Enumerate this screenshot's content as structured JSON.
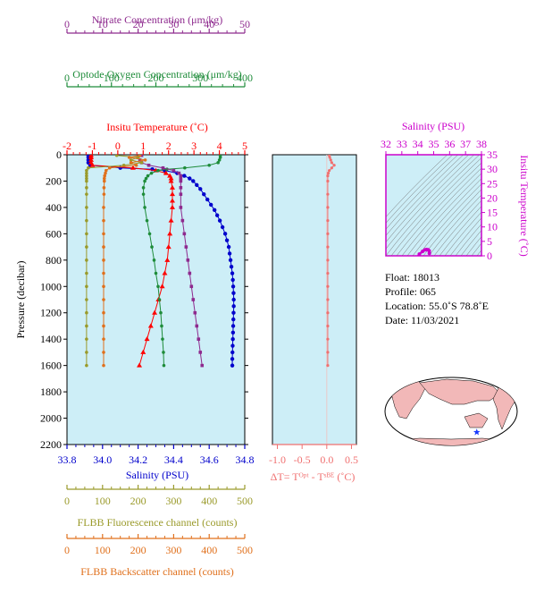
{
  "colors": {
    "nitrate": "#8e2a8e",
    "oxygen": "#1e8c3a",
    "temperature": "#ff0000",
    "salinity": "#0000cc",
    "fluorescence": "#9a9a2a",
    "backscatter": "#e0701c",
    "delta_t": "#f07070",
    "ts_axis": "#cc00cc",
    "panel_bg": "#cdeef7",
    "land": "#f2b8b8"
  },
  "chart_data": [
    {
      "type": "line",
      "name": "profiles",
      "ylabel": "Pressure (decibar)",
      "ylim": [
        2200,
        0
      ],
      "yticks": [
        0,
        200,
        400,
        600,
        800,
        1000,
        1200,
        1400,
        1600,
        1800,
        2000,
        2200
      ],
      "axes": {
        "nitrate": {
          "label": "Nitrate Concentration (μm/kg)",
          "range": [
            0,
            50
          ],
          "ticks": [
            0,
            10,
            20,
            30,
            40,
            50
          ]
        },
        "oxygen": {
          "label": "Optode Oxygen Concentration (μm/kg)",
          "range": [
            0,
            400
          ],
          "ticks": [
            0,
            100,
            200,
            300,
            400
          ]
        },
        "temperature": {
          "label": "Insitu Temperature (˚C)",
          "range": [
            -2,
            5
          ],
          "ticks": [
            -2,
            -1,
            0,
            1,
            2,
            3,
            4,
            5
          ]
        },
        "salinity": {
          "label": "Salinity (PSU)",
          "range": [
            33.8,
            34.8
          ],
          "ticks": [
            "33.8",
            "34.0",
            "34.2",
            "34.4",
            "34.6",
            "34.8"
          ]
        },
        "fluorescence": {
          "label": "FLBB Fluorescence channel (counts)",
          "range": [
            0,
            500
          ],
          "ticks": [
            0,
            100,
            200,
            300,
            400,
            500
          ]
        },
        "backscatter": {
          "label": "FLBB Backscatter channel (counts)",
          "range": [
            0,
            500
          ],
          "ticks": [
            0,
            100,
            200,
            300,
            400,
            500
          ]
        }
      },
      "series": [
        {
          "key": "salinity",
          "pressure": [
            5,
            20,
            40,
            60,
            80,
            100,
            110,
            120,
            140,
            160,
            180,
            200,
            230,
            260,
            300,
            340,
            380,
            420,
            460,
            500,
            550,
            600,
            650,
            700,
            750,
            800,
            850,
            900,
            950,
            1000,
            1050,
            1100,
            1150,
            1200,
            1250,
            1300,
            1350,
            1400,
            1450,
            1500,
            1550,
            1600
          ],
          "values": [
            33.92,
            33.92,
            33.92,
            33.92,
            33.93,
            34.1,
            34.28,
            34.35,
            34.42,
            34.46,
            34.49,
            34.51,
            34.53,
            34.55,
            34.57,
            34.59,
            34.61,
            34.63,
            34.645,
            34.66,
            34.675,
            34.69,
            34.7,
            34.71,
            34.715,
            34.72,
            34.725,
            34.73,
            34.733,
            34.735,
            34.737,
            34.738,
            34.738,
            34.737,
            34.736,
            34.735,
            34.734,
            34.733,
            34.732,
            34.731,
            34.73,
            34.73
          ]
        },
        {
          "key": "temperature",
          "pressure": [
            5,
            20,
            40,
            60,
            80,
            100,
            120,
            140,
            160,
            180,
            200,
            250,
            300,
            350,
            400,
            500,
            600,
            700,
            800,
            900,
            1000,
            1100,
            1200,
            1300,
            1400,
            1500,
            1600
          ],
          "values": [
            -1.05,
            -1.05,
            -1.05,
            -1.05,
            -1.0,
            0.6,
            1.5,
            1.9,
            2.05,
            2.1,
            2.1,
            2.15,
            2.15,
            2.15,
            2.15,
            2.1,
            2.05,
            2.0,
            1.95,
            1.85,
            1.75,
            1.6,
            1.45,
            1.3,
            1.15,
            1.0,
            0.85
          ]
        },
        {
          "key": "oxygen",
          "pressure": [
            5,
            20,
            40,
            60,
            80,
            100,
            110,
            120,
            140,
            160,
            180,
            200,
            250,
            300,
            400,
            500,
            600,
            700,
            800,
            900,
            1000,
            1100,
            1200,
            1300,
            1400,
            1500,
            1600
          ],
          "values": [
            345,
            345,
            343,
            340,
            320,
            265,
            225,
            205,
            190,
            182,
            178,
            175,
            172,
            172,
            175,
            180,
            186,
            191,
            196,
            200,
            205,
            208,
            211,
            213,
            215,
            217,
            218
          ]
        },
        {
          "key": "nitrate",
          "pressure": [
            5,
            20,
            40,
            60,
            80,
            100,
            120,
            140,
            160,
            180,
            200,
            250,
            300,
            400,
            500,
            600,
            700,
            800,
            900,
            1000,
            1100,
            1200,
            1300,
            1400,
            1500,
            1600
          ],
          "values": [
            21,
            20,
            20.5,
            21,
            23,
            27,
            30,
            31.5,
            32,
            32,
            32,
            32,
            32,
            32,
            32.5,
            33,
            33.5,
            34,
            34.5,
            35,
            35.5,
            36,
            36.5,
            37,
            37.5,
            38
          ]
        },
        {
          "key": "fluorescence",
          "pressure": [
            5,
            20,
            40,
            60,
            80,
            100,
            120,
            140,
            160,
            180,
            200,
            250,
            300,
            400,
            500,
            600,
            700,
            800,
            900,
            1000,
            1100,
            1200,
            1300,
            1400,
            1500,
            1600
          ],
          "values": [
            140,
            200,
            180,
            210,
            160,
            60,
            55,
            55,
            55,
            55,
            55,
            55,
            55,
            55,
            55,
            55,
            55,
            55,
            55,
            55,
            55,
            55,
            55,
            55,
            55,
            55
          ]
        },
        {
          "key": "backscatter",
          "pressure": [
            5,
            20,
            40,
            60,
            80,
            100,
            120,
            140,
            160,
            180,
            200,
            250,
            300,
            400,
            500,
            600,
            700,
            800,
            900,
            1000,
            1100,
            1200,
            1300,
            1400,
            1500,
            1600
          ],
          "values": [
            205,
            175,
            220,
            180,
            195,
            120,
            110,
            108,
            106,
            105,
            105,
            104,
            104,
            103,
            103,
            103,
            103,
            103,
            103,
            103,
            103,
            103,
            103,
            103,
            103,
            103
          ]
        }
      ]
    },
    {
      "type": "line",
      "name": "delta_t",
      "xlabel": "ΔT= Tᴼᵖᵗ - Tˢᴮᴱ (˚C)",
      "xlim": [
        -1.1,
        0.6
      ],
      "xticks": [
        "-1.0",
        "-0.5",
        "0.0",
        "0.5"
      ],
      "ylim": [
        2200,
        0
      ],
      "series": [
        {
          "name": "",
          "pressure": [
            5,
            20,
            40,
            60,
            80,
            100,
            120,
            140,
            160,
            200,
            300,
            400,
            500,
            600,
            700,
            800,
            900,
            1000,
            1100,
            1200,
            1300,
            1400,
            1500,
            1600
          ],
          "values": [
            0.05,
            0.06,
            0.08,
            0.1,
            0.15,
            0.1,
            0.05,
            0.03,
            0.02,
            0.02,
            0.02,
            0.02,
            0.02,
            0.02,
            0.02,
            0.02,
            0.02,
            0.02,
            0.02,
            0.02,
            0.02,
            0.02,
            0.02,
            0.02
          ]
        }
      ]
    },
    {
      "type": "scatter",
      "name": "ts_diagram",
      "xlabel": "Salinity (PSU)",
      "ylabel": "Insitu Temperature (˚C)",
      "xlim": [
        32,
        38
      ],
      "ylim": [
        0,
        35
      ],
      "xticks": [
        32,
        33,
        34,
        35,
        36,
        37,
        38
      ],
      "yticks": [
        0,
        5,
        10,
        15,
        20,
        25,
        30,
        35
      ],
      "series": [
        {
          "name": "",
          "salinity": [
            33.92,
            34.1,
            34.3,
            34.45,
            34.55,
            34.65,
            34.72,
            34.73
          ],
          "temperature": [
            -1.05,
            0.6,
            1.5,
            2.05,
            2.15,
            2.1,
            1.7,
            0.85
          ]
        }
      ]
    }
  ],
  "float_info": {
    "float": "Float:  18013",
    "profile": "Profile:  065",
    "location": "Location:  55.0˚S  78.8˚E",
    "date": "Date:  11/03/2021"
  },
  "map": {
    "marker_icon": "star-icon",
    "lat": -55.0,
    "lon": 78.8
  }
}
